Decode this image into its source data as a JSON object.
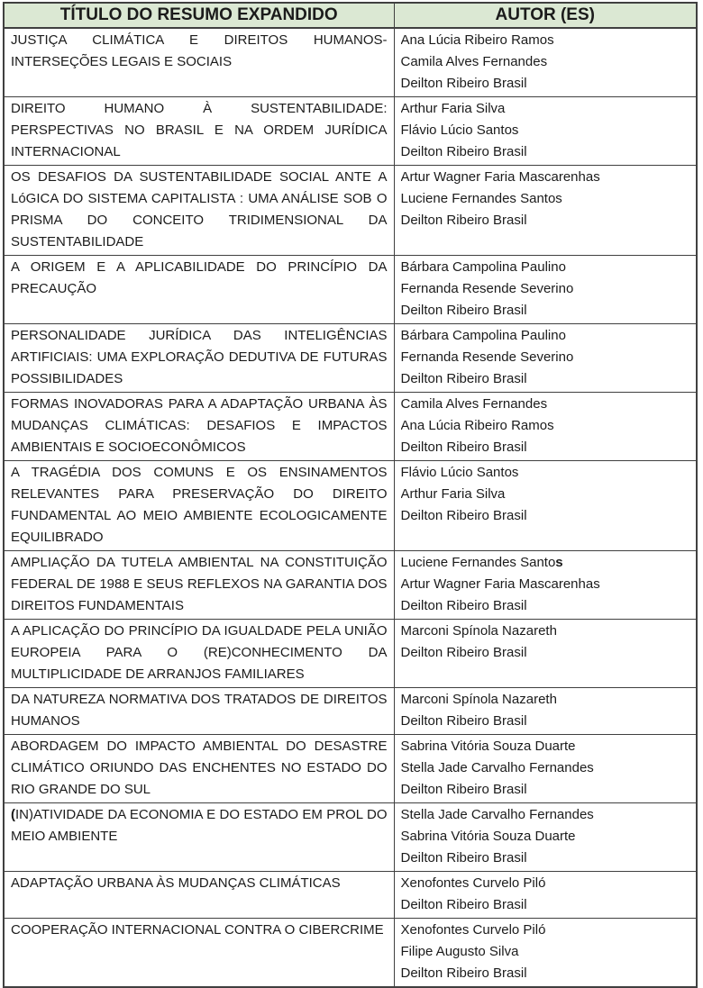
{
  "table": {
    "headers": [
      "TÍTULO DO RESUMO EXPANDIDO",
      "AUTOR (ES)"
    ],
    "header_bg_color": "#dbe8d3",
    "border_color": "#404040",
    "rows": [
      {
        "title": "JUSTIÇA CLIMÁTICA E DIREITOS HUMANOS-INTERSEÇÕES LEGAIS E SOCIAIS",
        "authors": [
          "Ana Lúcia Ribeiro Ramos",
          "Camila Alves Fernandes",
          "Deilton Ribeiro Brasil"
        ]
      },
      {
        "title": "DIREITO HUMANO À SUSTENTABILIDADE: PERSPECTIVAS NO BRASIL E NA ORDEM JURÍDICA INTERNACIONAL",
        "authors": [
          "Arthur Faria Silva",
          "Flávio Lúcio Santos",
          "Deilton Ribeiro Brasil"
        ]
      },
      {
        "title": "OS DESAFIOS DA SUSTENTABILIDADE SOCIAL ANTE A LóGICA DO SISTEMA CAPITALISTA : UMA ANÁLISE SOB O PRISMA DO CONCEITO TRIDIMENSIONAL DA SUSTENTABILIDADE",
        "authors": [
          "Artur Wagner Faria Mascarenhas",
          "Luciene Fernandes Santos",
          "Deilton Ribeiro Brasil"
        ]
      },
      {
        "title": "A ORIGEM E A APLICABILIDADE DO PRINCÍPIO DA PRECAUÇÃO",
        "authors": [
          "Bárbara Campolina Paulino",
          "Fernanda Resende Severino",
          "Deilton Ribeiro Brasil"
        ]
      },
      {
        "title": "PERSONALIDADE JURÍDICA DAS INTELIGÊNCIAS ARTIFICIAIS: UMA EXPLORAÇÃO DEDUTIVA DE FUTURAS POSSIBILIDADES",
        "authors": [
          "Bárbara Campolina Paulino",
          "Fernanda Resende Severino",
          "Deilton Ribeiro Brasil"
        ]
      },
      {
        "title": "FORMAS INOVADORAS PARA A ADAPTAÇÃO URBANA ÀS MUDANÇAS CLIMÁTICAS: DESAFIOS E IMPACTOS AMBIENTAIS E SOCIOECONÔMICOS",
        "authors": [
          "Camila Alves Fernandes",
          "Ana Lúcia Ribeiro Ramos",
          "Deilton Ribeiro Brasil"
        ]
      },
      {
        "title": "A TRAGÉDIA DOS COMUNS E OS ENSINAMENTOS RELEVANTES PARA PRESERVAÇÃO DO DIREITO FUNDAMENTAL AO MEIO AMBIENTE ECOLOGICAMENTE EQUILIBRADO",
        "authors": [
          "Flávio Lúcio Santos",
          "Arthur Faria Silva",
          "Deilton Ribeiro Brasil"
        ]
      },
      {
        "title": "AMPLIAÇÃO DA TUTELA AMBIENTAL NA CONSTITUIÇÃO FEDERAL DE 1988 E SEUS REFLEXOS NA GARANTIA DOS DIREITOS FUNDAMENTAIS",
        "authors": [
          "Luciene Fernandes Santos",
          "Artur Wagner Faria Mascarenhas",
          "Deilton Ribeiro Brasil"
        ],
        "author_bold_last_char_index": 0
      },
      {
        "title": "A APLICAÇÃO DO PRINCÍPIO DA IGUALDADE PELA UNIÃO EUROPEIA PARA O (RE)CONHECIMENTO DA MULTIPLICIDADE DE ARRANJOS FAMILIARES",
        "authors": [
          "Marconi Spínola Nazareth",
          "Deilton Ribeiro Brasil"
        ]
      },
      {
        "title": "DA NATUREZA NORMATIVA DOS TRATADOS DE DIREITOS HUMANOS",
        "authors": [
          "Marconi Spínola Nazareth",
          "Deilton Ribeiro Brasil"
        ]
      },
      {
        "title": "ABORDAGEM DO IMPACTO AMBIENTAL DO DESASTRE CLIMÁTICO ORIUNDO DAS ENCHENTES NO ESTADO DO RIO GRANDE DO SUL",
        "authors": [
          "Sabrina Vitória Souza Duarte",
          "Stella Jade Carvalho Fernandes",
          "Deilton Ribeiro Brasil"
        ]
      },
      {
        "title": "(IN)ATIVIDADE DA ECONOMIA E DO ESTADO EM PROL DO MEIO AMBIENTE",
        "authors": [
          "Stella Jade Carvalho Fernandes",
          "Sabrina Vitória Souza Duarte",
          "Deilton Ribeiro Brasil"
        ],
        "title_bold_first_char": true
      },
      {
        "title": "ADAPTAÇÃO URBANA ÀS MUDANÇAS CLIMÁTICAS",
        "authors": [
          "Xenofontes Curvelo Piló",
          "Deilton Ribeiro Brasil"
        ]
      },
      {
        "title": "COOPERAÇÃO INTERNACIONAL CONTRA O CIBERCRIME",
        "authors": [
          "Xenofontes Curvelo Piló",
          "Filipe Augusto Silva",
          "Deilton Ribeiro Brasil"
        ]
      }
    ]
  }
}
